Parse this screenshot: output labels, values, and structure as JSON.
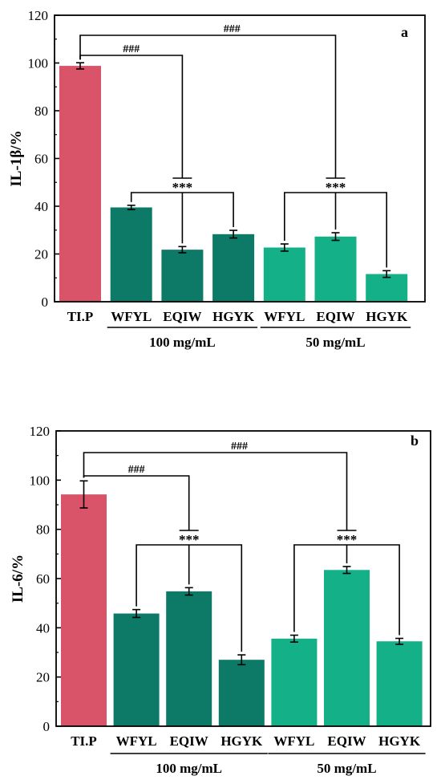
{
  "chart_data": [
    {
      "type": "bar",
      "panel_letter": "a",
      "ylabel": "IL-1β/%",
      "ylim": [
        0,
        120
      ],
      "yticks": [
        0,
        20,
        40,
        60,
        80,
        100,
        120
      ],
      "categories": [
        "TI.P",
        "WFYL",
        "EQIW",
        "HGYK",
        "WFYL",
        "EQIW",
        "HGYK"
      ],
      "values": [
        98.8,
        39.5,
        21.8,
        28.3,
        22.7,
        27.3,
        11.6
      ],
      "errors": [
        1.3,
        0.9,
        1.3,
        1.6,
        1.5,
        1.6,
        1.4
      ],
      "colors": [
        "#d95468",
        "#0d7a68",
        "#0d7a68",
        "#0d7a68",
        "#14b088",
        "#14b088",
        "#14b088"
      ],
      "groups": [
        {
          "label": "100 mg/mL",
          "from": 1,
          "to": 3
        },
        {
          "label": "50 mg/mL",
          "from": 4,
          "to": 6
        }
      ],
      "annotations": {
        "hash": "###",
        "star": "***"
      },
      "grid": false
    },
    {
      "type": "bar",
      "panel_letter": "b",
      "ylabel": "IL-6/%",
      "ylim": [
        0,
        120
      ],
      "yticks": [
        0,
        20,
        40,
        60,
        80,
        100,
        120
      ],
      "categories": [
        "TI.P",
        "WFYL",
        "EQIW",
        "HGYK",
        "WFYL",
        "EQIW",
        "HGYK"
      ],
      "values": [
        94.2,
        45.8,
        54.8,
        27.0,
        35.6,
        63.5,
        34.5
      ],
      "errors": [
        5.5,
        1.6,
        1.5,
        2.0,
        1.4,
        1.4,
        1.2
      ],
      "colors": [
        "#d95468",
        "#0d7a68",
        "#0d7a68",
        "#0d7a68",
        "#14b088",
        "#14b088",
        "#14b088"
      ],
      "groups": [
        {
          "label": "100 mg/mL",
          "from": 1,
          "to": 3
        },
        {
          "label": "50 mg/mL",
          "from": 4,
          "to": 6
        }
      ],
      "annotations": {
        "hash": "###",
        "star": "***"
      },
      "grid": false
    }
  ]
}
